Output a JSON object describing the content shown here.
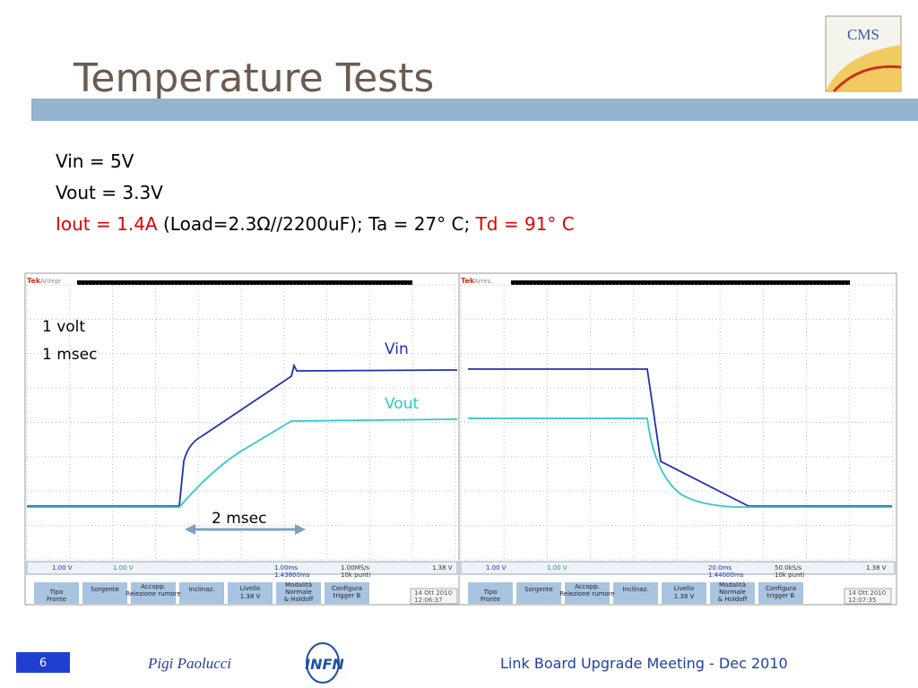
{
  "header": {
    "title": "Temperature Tests"
  },
  "conditions": {
    "line1": "Vin = 5V",
    "line2": "Vout = 3.3V",
    "line3": {
      "current": "Iout = 1.4A",
      "load": " (Load=2.3Ω//2200uF); Ta = 27° C; ",
      "td": "Td = 91° C"
    }
  },
  "annotations": {
    "volt": "1 volt",
    "msec": "1 msec",
    "vin": "Vin",
    "vout": "Vout",
    "span": "2 msec"
  },
  "scopes": [
    {
      "brand": "Tek",
      "mode": "Antepr",
      "ch1": "1.00 V",
      "ch2": "1.00 V",
      "timebase": "1.00ms",
      "delay": "1.43800ms",
      "rate": "1.00MS/s",
      "points": "10k punti",
      "trig": "1.38 V",
      "menu": [
        "Tipo",
        "Fronte",
        "Sorgente",
        "Accopp.",
        "Reiezione rumore",
        "Inclinaz.",
        "Livello",
        "1.38 V",
        "Modalità",
        "Normale",
        "& Holdoff",
        "Configura",
        "trigger B"
      ],
      "date": "14 Ott  2010",
      "time": "12:06:37"
    },
    {
      "brand": "Tek",
      "mode": "Arres.",
      "ch1": "1.00 V",
      "ch2": "1.00 V",
      "timebase": "20.0ms",
      "delay": "1.44000ms",
      "rate": "50.0kS/s",
      "points": "10k punti",
      "trig": "1.38 V",
      "menu": [
        "Tipo",
        "Fronte",
        "Sorgente",
        "Accopp.",
        "Reiezione rumore",
        "Inclinaz.",
        "Livello",
        "1.38 V",
        "Modalità",
        "Normale",
        "& Holdoff",
        "Configura",
        "trigger B"
      ],
      "date": "14 Ott  2010",
      "time": "12:07:35"
    }
  ],
  "footer": {
    "page": "6",
    "author": "Pigi Paolucci",
    "logo": "INFN",
    "meeting": "Link Board Upgrade Meeting - Dec 2010",
    "logo_cms": "CMS"
  }
}
